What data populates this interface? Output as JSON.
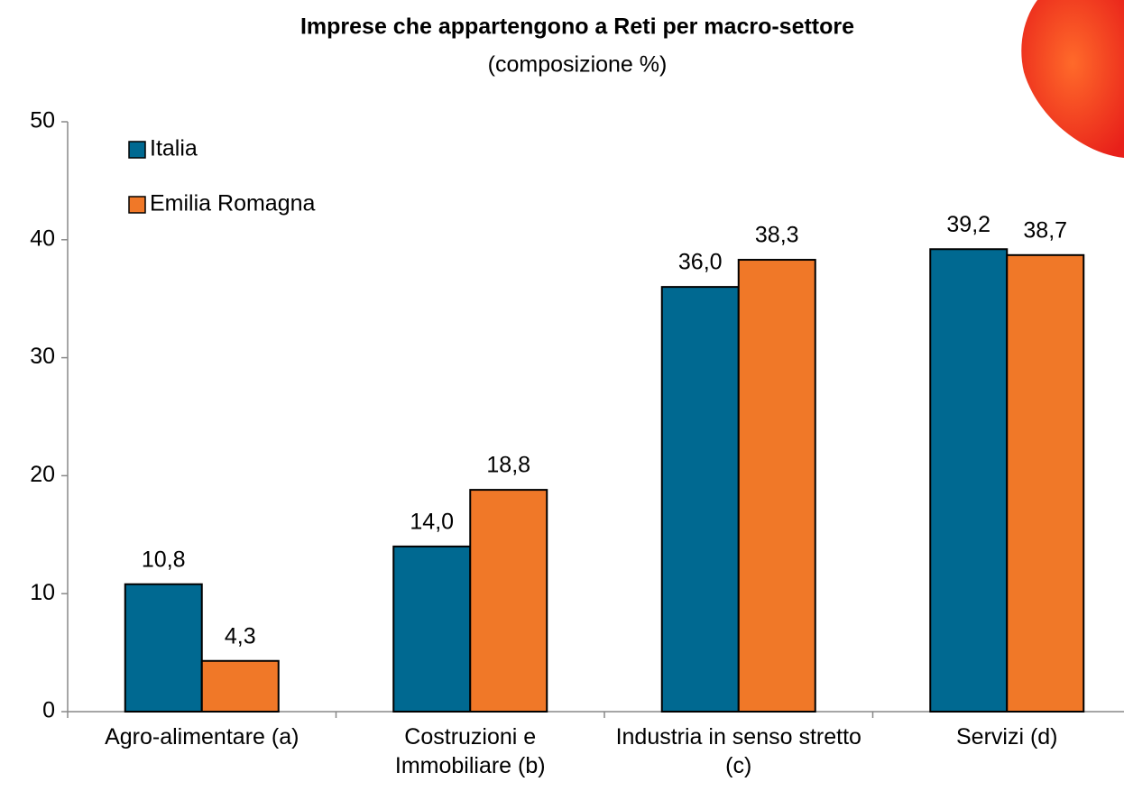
{
  "chart_data": {
    "type": "bar",
    "title": "Imprese che appartengono a Reti per macro-settore",
    "subtitle": "(composizione %)",
    "categories": [
      "Agro-alimentare (a)",
      "Costruzioni e Immobiliare (b)",
      "Industria in senso stretto (c)",
      "Servizi (d)"
    ],
    "series": [
      {
        "name": "Italia",
        "color": "#006991",
        "values": [
          10.8,
          14.0,
          36.0,
          39.2
        ],
        "value_labels": [
          "10,8",
          "14,0",
          "36,0",
          "39,2"
        ]
      },
      {
        "name": "Emilia Romagna",
        "color": "#f07828",
        "values": [
          4.3,
          18.8,
          38.3,
          38.7
        ],
        "value_labels": [
          "4,3",
          "18,8",
          "38,3",
          "38,7"
        ]
      }
    ],
    "ylim": [
      0,
      50
    ],
    "yticks": [
      0,
      10,
      20,
      30,
      40,
      50
    ],
    "grid": false,
    "legend": "top-left"
  }
}
